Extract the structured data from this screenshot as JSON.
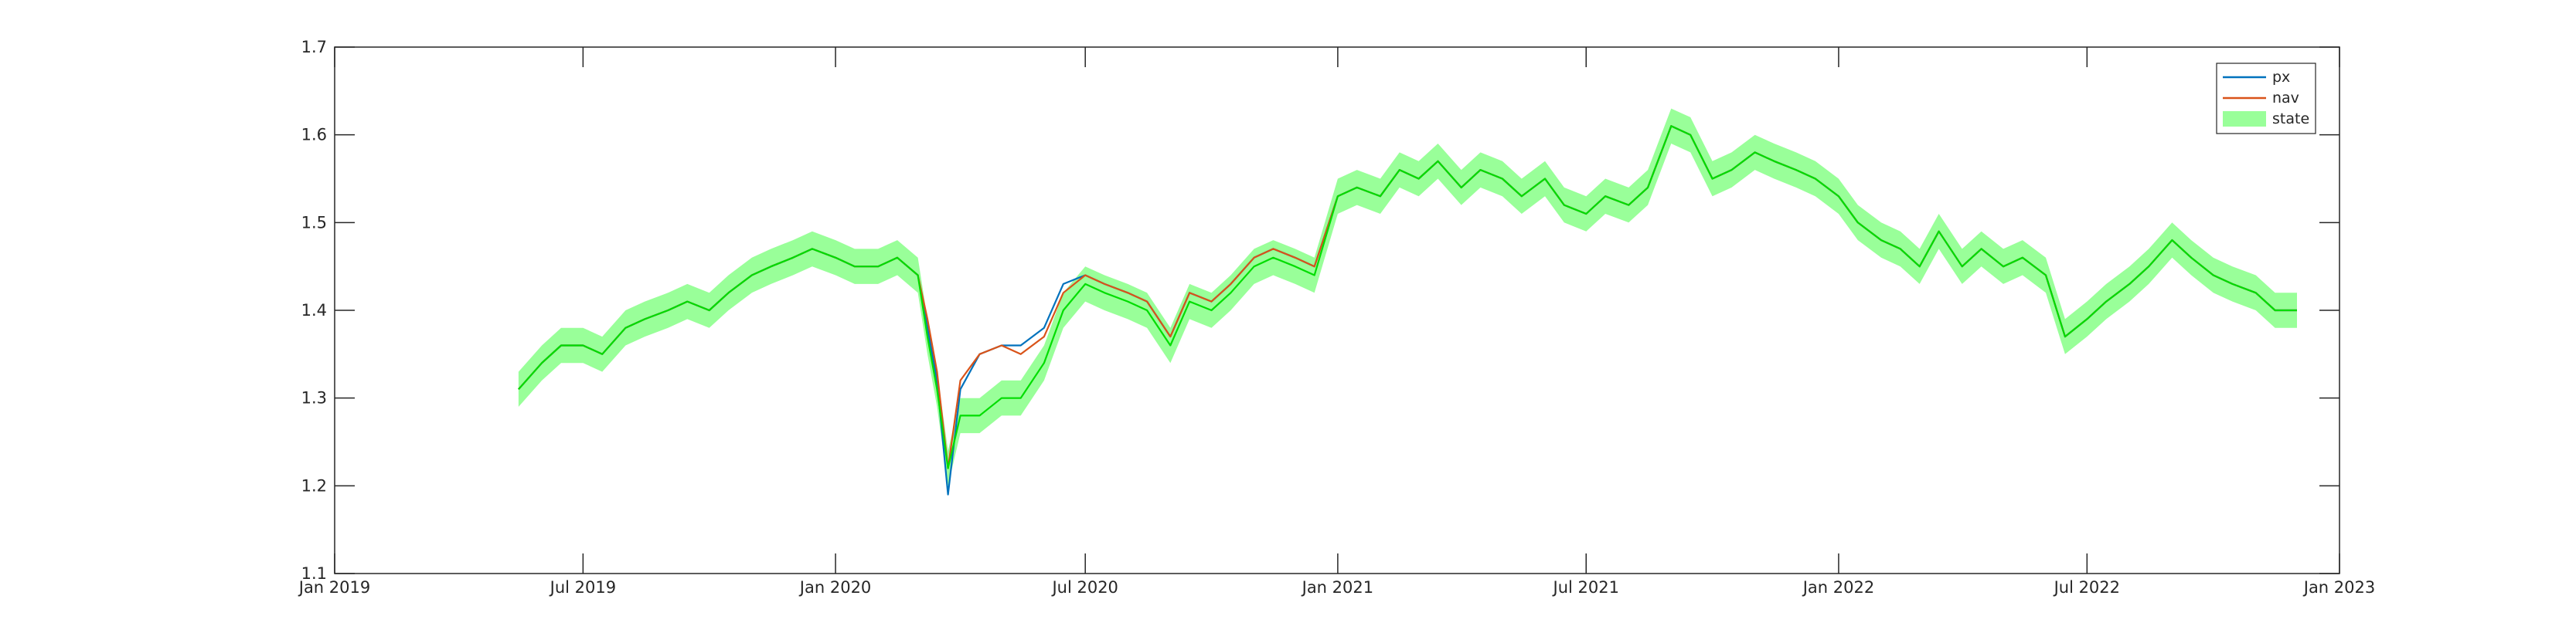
{
  "chart_data": {
    "type": "line",
    "title": "",
    "xlabel": "",
    "ylabel": "",
    "xlim": [
      "2019-01-01",
      "2023-01-01"
    ],
    "ylim": [
      1.1,
      1.7
    ],
    "yticks": [
      1.1,
      1.2,
      1.3,
      1.4,
      1.5,
      1.6,
      1.7
    ],
    "xticks": [
      "Jan 2019",
      "Jul 2019",
      "Jan 2020",
      "Jul 2020",
      "Jan 2021",
      "Jul 2021",
      "Jan 2022",
      "Jul 2022",
      "Jan 2023"
    ],
    "xtick_dates": [
      "2019-01-01",
      "2019-07-01",
      "2020-01-01",
      "2020-07-01",
      "2021-01-01",
      "2021-07-01",
      "2022-01-01",
      "2022-07-01",
      "2023-01-01"
    ],
    "grid": false,
    "legend_position": "top-right",
    "x": [
      "2019-05-15",
      "2019-06-01",
      "2019-06-15",
      "2019-07-01",
      "2019-07-15",
      "2019-08-01",
      "2019-08-15",
      "2019-09-01",
      "2019-09-15",
      "2019-10-01",
      "2019-10-15",
      "2019-11-01",
      "2019-11-15",
      "2019-12-01",
      "2019-12-15",
      "2020-01-01",
      "2020-01-15",
      "2020-02-01",
      "2020-02-15",
      "2020-03-01",
      "2020-03-08",
      "2020-03-15",
      "2020-03-23",
      "2020-04-01",
      "2020-04-15",
      "2020-05-01",
      "2020-05-15",
      "2020-06-01",
      "2020-06-15",
      "2020-07-01",
      "2020-07-15",
      "2020-08-01",
      "2020-08-15",
      "2020-09-01",
      "2020-09-15",
      "2020-10-01",
      "2020-10-15",
      "2020-11-01",
      "2020-11-15",
      "2020-12-01",
      "2020-12-15",
      "2021-01-01",
      "2021-01-15",
      "2021-02-01",
      "2021-02-15",
      "2021-03-01",
      "2021-03-15",
      "2021-04-01",
      "2021-04-15",
      "2021-05-01",
      "2021-05-15",
      "2021-06-01",
      "2021-06-15",
      "2021-07-01",
      "2021-07-15",
      "2021-08-01",
      "2021-08-15",
      "2021-09-01",
      "2021-09-15",
      "2021-10-01",
      "2021-10-15",
      "2021-11-01",
      "2021-11-15",
      "2021-12-01",
      "2021-12-15",
      "2022-01-01",
      "2022-01-15",
      "2022-02-01",
      "2022-02-15",
      "2022-03-01",
      "2022-03-15",
      "2022-04-01",
      "2022-04-15",
      "2022-05-01",
      "2022-05-15",
      "2022-06-01",
      "2022-06-15",
      "2022-07-01",
      "2022-07-15",
      "2022-08-01",
      "2022-08-15",
      "2022-09-01",
      "2022-09-15",
      "2022-10-01",
      "2022-10-15",
      "2022-11-01",
      "2022-11-15",
      "2022-12-01"
    ],
    "series": [
      {
        "name": "px",
        "color": "#0072BD",
        "style": "line",
        "values": [
          1.31,
          1.34,
          1.36,
          1.36,
          1.35,
          1.38,
          1.39,
          1.4,
          1.41,
          1.4,
          1.42,
          1.44,
          1.45,
          1.46,
          1.47,
          1.46,
          1.45,
          1.45,
          1.46,
          1.44,
          1.38,
          1.32,
          1.19,
          1.31,
          1.35,
          1.36,
          1.36,
          1.38,
          1.43,
          1.44,
          1.43,
          1.42,
          1.41,
          1.37,
          1.42,
          1.41,
          1.43,
          1.46,
          1.47,
          1.46,
          1.45,
          1.53,
          1.54,
          1.53,
          1.56,
          1.55,
          1.57,
          1.54,
          1.56,
          1.55,
          1.53,
          1.55,
          1.52,
          1.51,
          1.53,
          1.52,
          1.54,
          1.61,
          1.6,
          1.55,
          1.56,
          1.58,
          1.57,
          1.56,
          1.55,
          1.53,
          1.5,
          1.48,
          1.47,
          1.45,
          1.49,
          1.45,
          1.47,
          1.45,
          1.46,
          1.44,
          1.37,
          1.39,
          1.41,
          1.43,
          1.45,
          1.48,
          1.46,
          1.44,
          1.43,
          1.42,
          1.4,
          1.4
        ]
      },
      {
        "name": "nav",
        "color": "#D95319",
        "style": "line",
        "values": [
          1.31,
          1.34,
          1.36,
          1.36,
          1.35,
          1.38,
          1.39,
          1.4,
          1.41,
          1.4,
          1.42,
          1.44,
          1.45,
          1.46,
          1.47,
          1.46,
          1.45,
          1.45,
          1.46,
          1.44,
          1.39,
          1.33,
          1.22,
          1.32,
          1.35,
          1.36,
          1.35,
          1.37,
          1.42,
          1.44,
          1.43,
          1.42,
          1.41,
          1.37,
          1.42,
          1.41,
          1.43,
          1.46,
          1.47,
          1.46,
          1.45,
          1.53,
          1.54,
          1.53,
          1.56,
          1.55,
          1.57,
          1.54,
          1.56,
          1.55,
          1.53,
          1.55,
          1.52,
          1.51,
          1.53,
          1.52,
          1.54,
          1.61,
          1.6,
          1.55,
          1.56,
          1.58,
          1.57,
          1.56,
          1.55,
          1.53,
          1.5,
          1.48,
          1.47,
          1.45,
          1.49,
          1.45,
          1.47,
          1.45,
          1.46,
          1.44,
          1.37,
          1.39,
          1.41,
          1.43,
          1.45,
          1.48,
          1.46,
          1.44,
          1.43,
          1.42,
          1.4,
          1.4
        ]
      },
      {
        "name": "state",
        "color": "#00DD00",
        "band_color": "#99FF99",
        "style": "line-with-band",
        "band_halfwidth": 0.02,
        "values": [
          1.31,
          1.34,
          1.36,
          1.36,
          1.35,
          1.38,
          1.39,
          1.4,
          1.41,
          1.4,
          1.42,
          1.44,
          1.45,
          1.46,
          1.47,
          1.46,
          1.45,
          1.45,
          1.46,
          1.44,
          1.37,
          1.31,
          1.22,
          1.28,
          1.28,
          1.3,
          1.3,
          1.34,
          1.4,
          1.43,
          1.42,
          1.41,
          1.4,
          1.36,
          1.41,
          1.4,
          1.42,
          1.45,
          1.46,
          1.45,
          1.44,
          1.53,
          1.54,
          1.53,
          1.56,
          1.55,
          1.57,
          1.54,
          1.56,
          1.55,
          1.53,
          1.55,
          1.52,
          1.51,
          1.53,
          1.52,
          1.54,
          1.61,
          1.6,
          1.55,
          1.56,
          1.58,
          1.57,
          1.56,
          1.55,
          1.53,
          1.5,
          1.48,
          1.47,
          1.45,
          1.49,
          1.45,
          1.47,
          1.45,
          1.46,
          1.44,
          1.37,
          1.39,
          1.41,
          1.43,
          1.45,
          1.48,
          1.46,
          1.44,
          1.43,
          1.42,
          1.4,
          1.4
        ]
      }
    ],
    "legend": [
      {
        "label": "px",
        "kind": "line",
        "color": "#0072BD"
      },
      {
        "label": "nav",
        "kind": "line",
        "color": "#D95319"
      },
      {
        "label": "state",
        "kind": "patch",
        "color": "#99FF99"
      }
    ]
  }
}
